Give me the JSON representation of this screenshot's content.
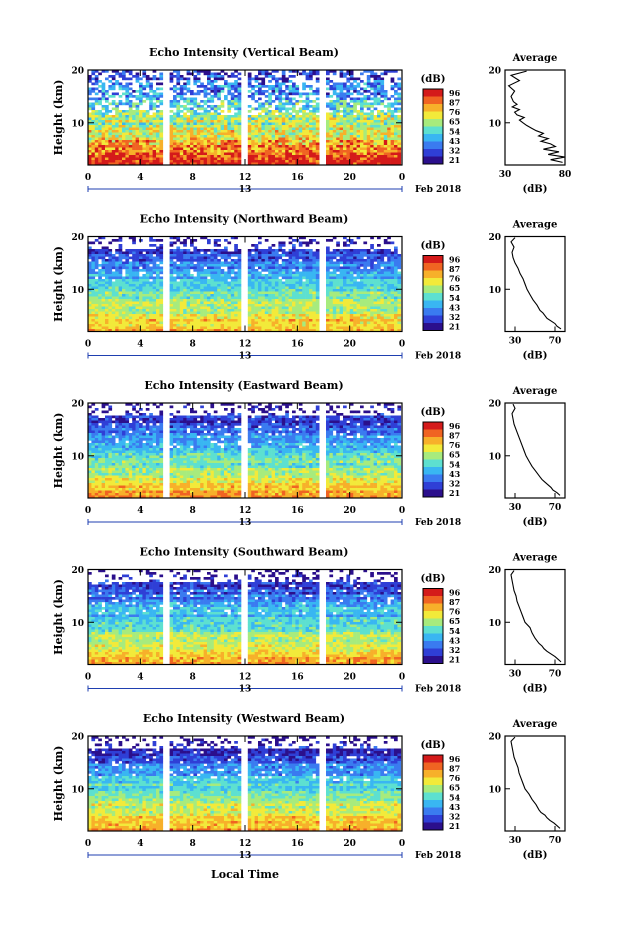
{
  "figure": {
    "date_label": "Feb 2018",
    "day_label": "13",
    "xaxis_label": "Local Time",
    "colorbar_unit": "(dB)",
    "colorbar_colors": [
      "#2b0f8c",
      "#2f3fd6",
      "#3a7bf0",
      "#39b6f2",
      "#5de0d0",
      "#a7eb7d",
      "#f2ea3a",
      "#f7b02a",
      "#f06422",
      "#d41a1a"
    ]
  },
  "chart_data": [
    {
      "type": "heatmap",
      "title": "Echo Intensity (Vertical Beam)",
      "xlabel": "",
      "ylabel": "Height (km)",
      "xlim": [
        0,
        24
      ],
      "ylim": [
        2,
        20
      ],
      "xticks": [
        "0",
        "4",
        "8",
        "12",
        "16",
        "20",
        "0"
      ],
      "yticks": [
        "20",
        "10"
      ],
      "data_gaps_hours": [
        [
          5.7,
          5.9
        ],
        [
          11.7,
          11.9
        ],
        [
          17.7,
          17.9
        ]
      ],
      "colorbar": {
        "label": "(dB)",
        "ticks": [
          "96",
          "87",
          "76",
          "65",
          "54",
          "43",
          "32",
          "21"
        ],
        "range": [
          21,
          96
        ]
      },
      "profile": {
        "title": "Average",
        "xlabel": "(dB)",
        "xlim": [
          30,
          80
        ],
        "xticks": [
          "30",
          "80"
        ],
        "yticks": [
          "20",
          "10"
        ],
        "height_km": [
          2.5,
          3,
          3.5,
          4,
          4.5,
          5,
          5.5,
          6,
          6.5,
          7,
          7.5,
          8,
          8.5,
          9,
          9.5,
          10,
          10.5,
          11,
          11.5,
          12,
          12.5,
          13,
          13.5,
          14,
          15,
          16,
          17,
          18,
          19,
          19.8
        ],
        "db": [
          78,
          68,
          80,
          66,
          75,
          62,
          72,
          68,
          60,
          66,
          58,
          62,
          56,
          52,
          48,
          45,
          42,
          46,
          40,
          38,
          42,
          36,
          40,
          37,
          35,
          38,
          33,
          42,
          35,
          48
        ]
      }
    },
    {
      "type": "heatmap",
      "title": "Echo Intensity (Northward Beam)",
      "xlabel": "",
      "ylabel": "Height (km)",
      "xlim": [
        0,
        24
      ],
      "ylim": [
        2,
        20
      ],
      "xticks": [
        "0",
        "4",
        "8",
        "12",
        "16",
        "20",
        "0"
      ],
      "yticks": [
        "20",
        "10"
      ],
      "data_gaps_hours": [
        [
          5.7,
          5.9
        ],
        [
          11.7,
          11.9
        ],
        [
          17.7,
          17.9
        ]
      ],
      "colorbar": {
        "label": "(dB)",
        "ticks": [
          "96",
          "87",
          "76",
          "65",
          "54",
          "43",
          "32",
          "21"
        ],
        "range": [
          21,
          96
        ]
      },
      "profile": {
        "title": "Average",
        "xlabel": "(dB)",
        "xlim": [
          20,
          80
        ],
        "xticks": [
          "30",
          "70"
        ],
        "yticks": [
          "20",
          "10"
        ],
        "height_km": [
          2.5,
          3,
          3.5,
          4,
          4.5,
          5,
          5.5,
          6,
          7,
          8,
          9,
          10,
          11,
          12,
          13,
          14,
          15,
          16,
          17,
          18,
          19,
          19.8
        ],
        "db": [
          76,
          72,
          70,
          66,
          62,
          60,
          58,
          55,
          52,
          48,
          45,
          42,
          40,
          38,
          35,
          33,
          30,
          28,
          27,
          29,
          26,
          30
        ]
      }
    },
    {
      "type": "heatmap",
      "title": "Echo Intensity (Eastward Beam)",
      "xlabel": "",
      "ylabel": "Height (km)",
      "xlim": [
        0,
        24
      ],
      "ylim": [
        2,
        20
      ],
      "xticks": [
        "0",
        "4",
        "8",
        "12",
        "16",
        "20",
        "0"
      ],
      "yticks": [
        "20",
        "10"
      ],
      "data_gaps_hours": [
        [
          5.7,
          5.9
        ],
        [
          11.7,
          11.9
        ],
        [
          17.7,
          17.9
        ]
      ],
      "colorbar": {
        "label": "(dB)",
        "ticks": [
          "96",
          "87",
          "76",
          "65",
          "54",
          "43",
          "32",
          "21"
        ],
        "range": [
          21,
          96
        ]
      },
      "profile": {
        "title": "Average",
        "xlabel": "(dB)",
        "xlim": [
          20,
          80
        ],
        "xticks": [
          "30",
          "70"
        ],
        "yticks": [
          "20",
          "10"
        ],
        "height_km": [
          2.5,
          3,
          3.5,
          4,
          4.5,
          5,
          5.5,
          6,
          7,
          8,
          9,
          10,
          11,
          12,
          13,
          14,
          15,
          16,
          17,
          18,
          19,
          19.8
        ],
        "db": [
          75,
          72,
          68,
          66,
          63,
          60,
          57,
          55,
          51,
          47,
          44,
          41,
          39,
          37,
          35,
          33,
          31,
          29,
          28,
          27,
          30,
          28
        ]
      }
    },
    {
      "type": "heatmap",
      "title": "Echo Intensity (Southward Beam)",
      "xlabel": "",
      "ylabel": "Height (km)",
      "xlim": [
        0,
        24
      ],
      "ylim": [
        2,
        20
      ],
      "xticks": [
        "0",
        "4",
        "8",
        "12",
        "16",
        "20",
        "0"
      ],
      "yticks": [
        "20",
        "10"
      ],
      "data_gaps_hours": [
        [
          5.7,
          5.9
        ],
        [
          11.7,
          11.9
        ],
        [
          17.7,
          17.9
        ]
      ],
      "colorbar": {
        "label": "(dB)",
        "ticks": [
          "96",
          "87",
          "76",
          "65",
          "54",
          "43",
          "32",
          "21"
        ],
        "range": [
          21,
          96
        ]
      },
      "profile": {
        "title": "Average",
        "xlabel": "(dB)",
        "xlim": [
          20,
          80
        ],
        "xticks": [
          "30",
          "70"
        ],
        "yticks": [
          "20",
          "10"
        ],
        "height_km": [
          2.5,
          3,
          3.5,
          4,
          4.5,
          5,
          5.5,
          6,
          7,
          8,
          9,
          10,
          11,
          12,
          13,
          14,
          15,
          16,
          17,
          18,
          19,
          19.8
        ],
        "db": [
          76,
          73,
          70,
          66,
          62,
          59,
          57,
          54,
          50,
          47,
          45,
          40,
          38,
          36,
          34,
          32,
          31,
          29,
          28,
          27,
          26,
          29
        ]
      }
    },
    {
      "type": "heatmap",
      "title": "Echo Intensity (Westward Beam)",
      "xlabel": "",
      "ylabel": "Height (km)",
      "xlim": [
        0,
        24
      ],
      "ylim": [
        2,
        20
      ],
      "xticks": [
        "0",
        "4",
        "8",
        "12",
        "16",
        "20",
        "0"
      ],
      "yticks": [
        "20",
        "10"
      ],
      "data_gaps_hours": [
        [
          5.7,
          5.9
        ],
        [
          11.7,
          11.9
        ],
        [
          17.7,
          17.9
        ]
      ],
      "colorbar": {
        "label": "(dB)",
        "ticks": [
          "96",
          "87",
          "76",
          "65",
          "54",
          "43",
          "32",
          "21"
        ],
        "range": [
          21,
          96
        ]
      },
      "profile": {
        "title": "Average",
        "xlabel": "(dB)",
        "xlim": [
          20,
          80
        ],
        "xticks": [
          "30",
          "70"
        ],
        "yticks": [
          "20",
          "10"
        ],
        "height_km": [
          2.5,
          3,
          3.5,
          4,
          4.5,
          5,
          5.5,
          6,
          7,
          8,
          9,
          10,
          11,
          12,
          13,
          14,
          15,
          16,
          17,
          18,
          19,
          19.8
        ],
        "db": [
          75,
          72,
          69,
          65,
          62,
          60,
          56,
          54,
          51,
          47,
          44,
          40,
          38,
          36,
          34,
          33,
          31,
          29,
          28,
          27,
          26,
          30
        ]
      }
    }
  ]
}
